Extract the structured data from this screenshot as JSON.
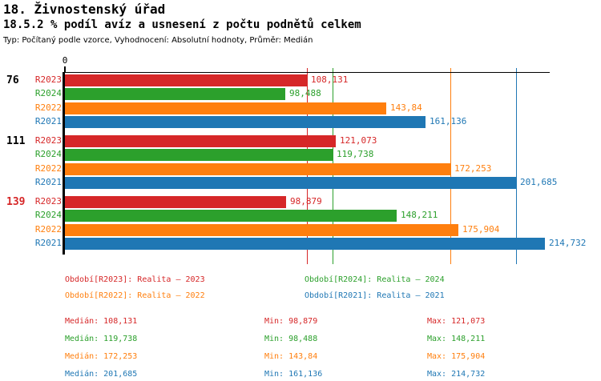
{
  "header": {
    "title": "18. Živnostenský úřad",
    "subtitle": "18.5.2 % podíl avíz a usnesení z počtu podnětů celkem",
    "typeline": "Typ: Počítaný podle vzorce, Vyhodnocení: Absolutní hodnoty, Průměr: Medián"
  },
  "colors": {
    "r2023": "#d62728",
    "r2024": "#2ca02c",
    "r2022": "#ff7f0e",
    "r2021": "#1f77b4",
    "axis": "#000000"
  },
  "chart_data": {
    "type": "bar",
    "orientation": "horizontal",
    "title": "18.5.2 % podíl avíz a usnesení z počtu podnětů celkem",
    "x_axis": {
      "min": 0,
      "zero_label": "0",
      "grid": "median lines per series"
    },
    "series_order": [
      "R2023",
      "R2024",
      "R2022",
      "R2021"
    ],
    "groups": [
      {
        "label": "76",
        "label_color": "#000000",
        "bars": [
          {
            "series": "R2023",
            "value": 108.131,
            "display": "108,131",
            "color": "#d62728"
          },
          {
            "series": "R2024",
            "value": 98.488,
            "display": "98,488",
            "color": "#2ca02c"
          },
          {
            "series": "R2022",
            "value": 143.84,
            "display": "143,84",
            "color": "#ff7f0e"
          },
          {
            "series": "R2021",
            "value": 161.136,
            "display": "161,136",
            "color": "#1f77b4"
          }
        ]
      },
      {
        "label": "111",
        "label_color": "#000000",
        "bars": [
          {
            "series": "R2023",
            "value": 121.073,
            "display": "121,073",
            "color": "#d62728"
          },
          {
            "series": "R2024",
            "value": 119.738,
            "display": "119,738",
            "color": "#2ca02c"
          },
          {
            "series": "R2022",
            "value": 172.253,
            "display": "172,253",
            "color": "#ff7f0e"
          },
          {
            "series": "R2021",
            "value": 201.685,
            "display": "201,685",
            "color": "#1f77b4"
          }
        ]
      },
      {
        "label": "139",
        "label_color": "#d62728",
        "bars": [
          {
            "series": "R2023",
            "value": 98.879,
            "display": "98,879",
            "color": "#d62728"
          },
          {
            "series": "R2024",
            "value": 148.211,
            "display": "148,211",
            "color": "#2ca02c"
          },
          {
            "series": "R2022",
            "value": 175.904,
            "display": "175,904",
            "color": "#ff7f0e"
          },
          {
            "series": "R2021",
            "value": 214.732,
            "display": "214,732",
            "color": "#1f77b4"
          }
        ]
      }
    ],
    "median_lines": [
      {
        "series": "R2023",
        "value": 108.131,
        "color": "#d62728"
      },
      {
        "series": "R2024",
        "value": 119.738,
        "color": "#2ca02c"
      },
      {
        "series": "R2022",
        "value": 172.253,
        "color": "#ff7f0e"
      },
      {
        "series": "R2021",
        "value": 201.685,
        "color": "#1f77b4"
      }
    ]
  },
  "legend": {
    "items": [
      {
        "series": "R2023",
        "text": "Období[R2023]: Realita – 2023",
        "color": "#d62728"
      },
      {
        "series": "R2024",
        "text": "Období[R2024]: Realita – 2024",
        "color": "#2ca02c"
      },
      {
        "series": "R2022",
        "text": "Období[R2022]: Realita – 2022",
        "color": "#ff7f0e"
      },
      {
        "series": "R2021",
        "text": "Období[R2021]: Realita – 2021",
        "color": "#1f77b4"
      }
    ]
  },
  "stats": {
    "rows": [
      {
        "series": "R2023",
        "median": "Medián: 108,131",
        "min": "Min: 98,879",
        "max": "Max: 121,073",
        "color": "#d62728"
      },
      {
        "series": "R2024",
        "median": "Medián: 119,738",
        "min": "Min: 98,488",
        "max": "Max: 148,211",
        "color": "#2ca02c"
      },
      {
        "series": "R2022",
        "median": "Medián: 172,253",
        "min": "Min: 143,84",
        "max": "Max: 175,904",
        "color": "#ff7f0e"
      },
      {
        "series": "R2021",
        "median": "Medián: 201,685",
        "min": "Min: 161,136",
        "max": "Max: 214,732",
        "color": "#1f77b4"
      }
    ]
  }
}
